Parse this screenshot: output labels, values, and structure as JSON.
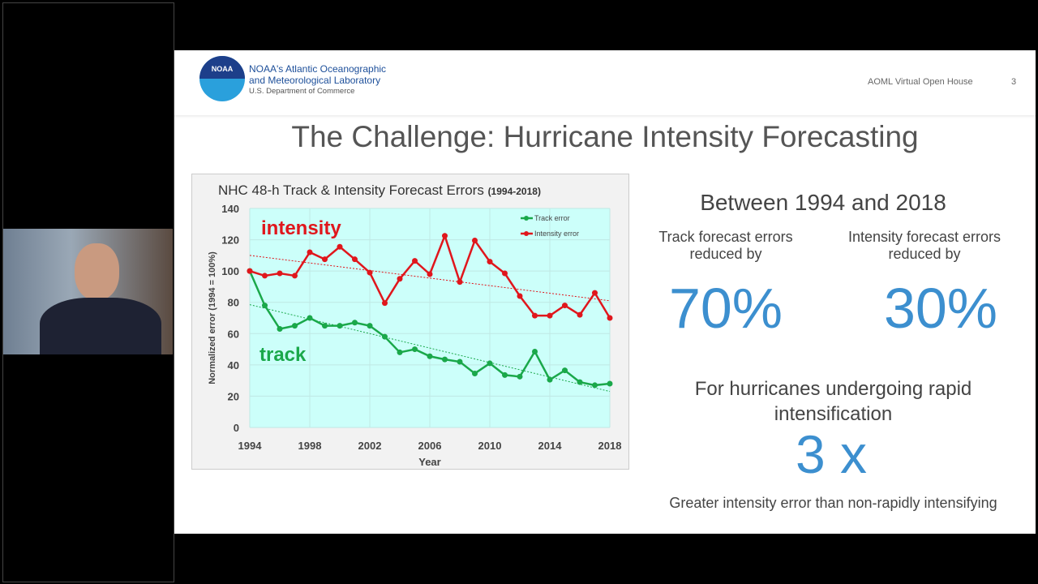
{
  "header": {
    "org_line1": "NOAA's Atlantic Oceanographic",
    "org_line2": "and Meteorological Laboratory",
    "org_line3": "U.S. Department of Commerce",
    "logo_text": "NOAA",
    "event": "AOML Virtual Open House",
    "page": "3"
  },
  "title": "The Challenge: Hurricane Intensity Forecasting",
  "stats": {
    "heading": "Between 1994 and 2018",
    "track_label": "Track forecast errors reduced by",
    "track_value": "70%",
    "intensity_label": "Intensity forecast errors reduced by",
    "intensity_value": "30%",
    "ri_label": "For hurricanes undergoing rapid intensification",
    "ri_value": "3 x",
    "ri_note": "Greater intensity error than non-rapidly intensifying"
  },
  "chart_data": {
    "type": "line",
    "title": "NHC 48-h Track & Intensity Forecast Errors",
    "title_suffix": "(1994-2018)",
    "xlabel": "Year",
    "ylabel": "Normalized error (1994 = 100%)",
    "xlim": [
      1994,
      2018
    ],
    "ylim": [
      0,
      140
    ],
    "xticks": [
      "1994",
      "1998",
      "2002",
      "2006",
      "2010",
      "2014",
      "2018"
    ],
    "yticks": [
      "0",
      "20",
      "40",
      "60",
      "80",
      "100",
      "120",
      "140"
    ],
    "x": [
      1994,
      1995,
      1996,
      1997,
      1998,
      1999,
      2000,
      2001,
      2002,
      2003,
      2004,
      2005,
      2006,
      2007,
      2008,
      2009,
      2010,
      2011,
      2012,
      2013,
      2014,
      2015,
      2016,
      2017,
      2018
    ],
    "series": [
      {
        "name": "Track error",
        "label": "track",
        "color": "#1aa84a",
        "values": [
          100,
          78,
          63,
          65,
          70,
          65,
          65,
          67,
          65,
          58,
          48,
          50,
          45.5,
          43.5,
          42,
          34.5,
          41,
          33.5,
          32.5,
          48.5,
          30.5,
          36.5,
          29,
          27,
          28
        ],
        "trend": [
          78.5,
          23
        ]
      },
      {
        "name": "Intensity error",
        "label": "intensity",
        "color": "#e0161c",
        "values": [
          100,
          97,
          98.5,
          97,
          112,
          107.5,
          115.5,
          107.5,
          99,
          79.5,
          95,
          106.5,
          98,
          122.5,
          93,
          119.5,
          106,
          98.5,
          84,
          71.5,
          71.5,
          78,
          72,
          86,
          70
        ],
        "trend": [
          110,
          81
        ]
      }
    ],
    "legend": "top-right",
    "grid": true,
    "background": "#ccfffa"
  }
}
